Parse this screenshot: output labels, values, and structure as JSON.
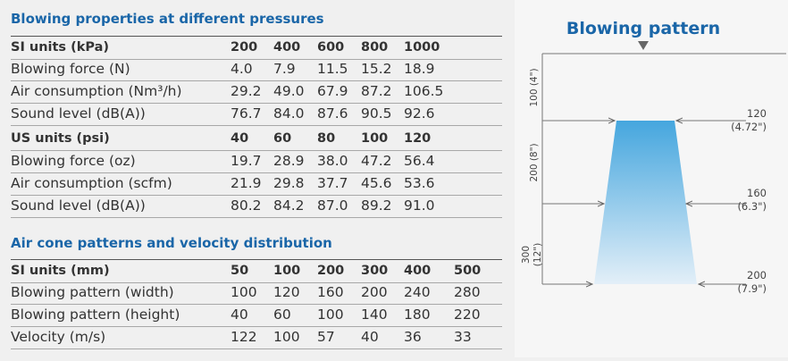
{
  "sections": [
    {
      "title": "Blowing properties at different pressures",
      "groups": [
        {
          "header": [
            "SI units (kPa)",
            "200",
            "400",
            "600",
            "800",
            "1000"
          ],
          "rows": [
            [
              "Blowing force (N)",
              "4.0",
              "7.9",
              "11.5",
              "15.2",
              "18.9"
            ],
            [
              "Air consumption (Nm³/h)",
              "29.2",
              "49.0",
              "67.9",
              "87.2",
              "106.5"
            ],
            [
              "Sound level (dB(A))",
              "76.7",
              "84.0",
              "87.6",
              "90.5",
              "92.6"
            ]
          ]
        },
        {
          "header": [
            "US units (psi)",
            "40",
            "60",
            "80",
            "100",
            "120"
          ],
          "rows": [
            [
              "Blowing force (oz)",
              "19.7",
              "28.9",
              "38.0",
              "47.2",
              "56.4"
            ],
            [
              "Air consumption (scfm)",
              "21.9",
              "29.8",
              "37.7",
              "45.6",
              "53.6"
            ],
            [
              "Sound level (dB(A))",
              "80.2",
              "84.2",
              "87.0",
              "89.2",
              "91.0"
            ]
          ]
        }
      ]
    },
    {
      "title": "Air cone patterns and velocity distribution",
      "groups": [
        {
          "header": [
            "SI units (mm)",
            "50",
            "100",
            "200",
            "300",
            "400",
            "500"
          ],
          "rows": [
            [
              "Blowing pattern (width)",
              "100",
              "120",
              "160",
              "200",
              "240",
              "280"
            ],
            [
              "Blowing pattern (height)",
              "40",
              "60",
              "100",
              "140",
              "180",
              "220"
            ],
            [
              "Velocity (m/s)",
              "122",
              "100",
              "57",
              "40",
              "36",
              "33"
            ]
          ]
        }
      ]
    }
  ],
  "diagram": {
    "title": "Blowing pattern",
    "distances": [
      {
        "mm": "100",
        "in": "(4\")"
      },
      {
        "mm": "200",
        "in": "(8\")"
      },
      {
        "mm": "300",
        "in": "(12\")"
      }
    ],
    "widths": [
      {
        "mm": "120",
        "in": "(4.72\")"
      },
      {
        "mm": "160",
        "in": "(6.3\")"
      },
      {
        "mm": "200",
        "in": "(7.9\")"
      }
    ]
  }
}
